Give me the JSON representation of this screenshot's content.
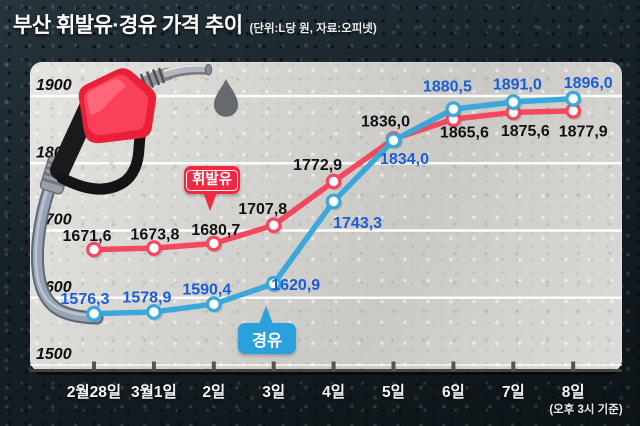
{
  "header": {
    "title": "부산 휘발유·경유 가격 추이",
    "subtitle": "(단위:L당 원, 자료:오피넷)"
  },
  "legend": {
    "gasoline": "휘발유",
    "diesel": "경유"
  },
  "axis": {
    "footnote": "(오후 3시 기준)"
  },
  "colors": {
    "gasoline_line": "#f4485e",
    "gasoline_bubble": "#f22742",
    "diesel_line": "#3ba8da",
    "diesel_bubble": "#2aa0dc",
    "gasoline_label_text": "#121212",
    "diesel_label_text": "#1a5ed6",
    "gridline": "#ffffff",
    "panel_background": "#d7d6d2",
    "page_background": "#121a1f",
    "axis_text": "#f3f5f6",
    "droplet": "#66696d"
  },
  "chart_data": {
    "type": "line",
    "title": "부산 휘발유·경유 가격 추이",
    "unit_note": "단위:L당 원",
    "source_note": "자료:오피넷",
    "categories": [
      "2월28일",
      "3월1일",
      "2일",
      "3일",
      "4일",
      "5일",
      "6일",
      "7일",
      "8일"
    ],
    "series": [
      {
        "name": "휘발유",
        "color": "#f4485e",
        "label_color": "#121212",
        "values": [
          1671.6,
          1673.8,
          1680.7,
          1707.8,
          1772.9,
          1836.0,
          1865.6,
          1875.6,
          1877.9
        ]
      },
      {
        "name": "경유",
        "color": "#3ba8da",
        "label_color": "#1a5ed6",
        "values": [
          1576.3,
          1578.9,
          1590.4,
          1620.9,
          1743.3,
          1834.0,
          1880.5,
          1891.0,
          1896.0
        ]
      }
    ],
    "ylim": [
      1500,
      1900
    ],
    "yticks": [
      1500,
      1600,
      1700,
      1800,
      1900
    ],
    "grid": true,
    "legend_position": "callout bubbles on plot",
    "decimal_separator": ",",
    "x_footnote": "(오후 3시 기준)"
  }
}
